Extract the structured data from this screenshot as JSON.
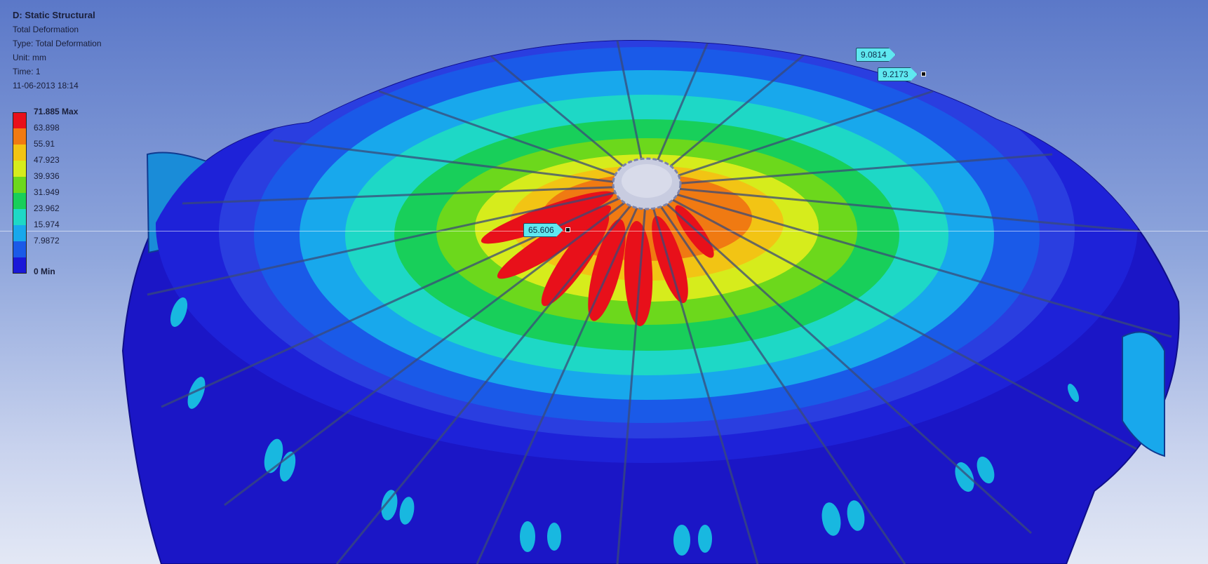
{
  "info": {
    "title": "D: Static Structural",
    "result": "Total Deformation",
    "type": "Type: Total Deformation",
    "unit": "Unit: mm",
    "time": "Time: 1",
    "date": "11-06-2013 18:14"
  },
  "legend": {
    "entries": [
      {
        "label": "71.885 Max",
        "color": "#e8101a"
      },
      {
        "label": "63.898",
        "color": "#f07a12"
      },
      {
        "label": "55.91",
        "color": "#f2c414"
      },
      {
        "label": "47.923",
        "color": "#d6ec1c"
      },
      {
        "label": "39.936",
        "color": "#6cd81c"
      },
      {
        "label": "31.949",
        "color": "#18cf5a"
      },
      {
        "label": "23.962",
        "color": "#1ed8c6"
      },
      {
        "label": "15.974",
        "color": "#18a8ec"
      },
      {
        "label": "7.9872",
        "color": "#1a5ae8"
      },
      {
        "label": "0 Min",
        "color": "#1a18d8"
      }
    ]
  },
  "probes": [
    {
      "label": "9.0814"
    },
    {
      "label": "9.2173"
    },
    {
      "label": "65.606"
    }
  ]
}
